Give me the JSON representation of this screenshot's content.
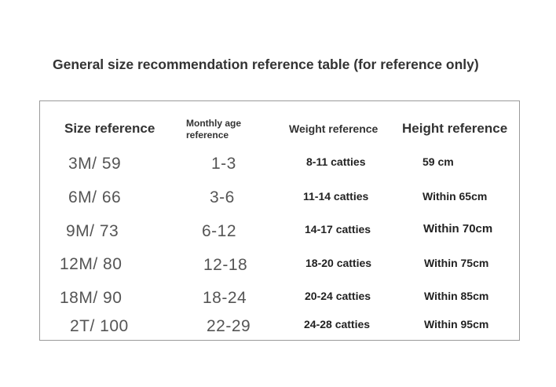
{
  "title": "General size recommendation reference table (for reference only)",
  "table": {
    "headers": {
      "size": "Size reference",
      "age_line1": "Monthly age",
      "age_line2": "reference",
      "weight": "Weight reference",
      "height": "Height reference"
    },
    "rows": [
      {
        "size": "3M/ 59",
        "age": "1-3",
        "weight": "8-11 catties",
        "height": "59 cm"
      },
      {
        "size": "6M/ 66",
        "age": "3-6",
        "weight": "11-14 catties",
        "height": "Within 65cm"
      },
      {
        "size": "9M/ 73",
        "age": "6-12",
        "weight": "14-17 catties",
        "height": "Within 70cm"
      },
      {
        "size": "12M/ 80",
        "age": "12-18",
        "weight": "18-20 catties",
        "height": "Within 75cm"
      },
      {
        "size": "18M/ 90",
        "age": "18-24",
        "weight": "20-24 catties",
        "height": "Within 85cm"
      },
      {
        "size": "2T/ 100",
        "age": "22-29",
        "weight": "24-28 catties",
        "height": "Within 95cm"
      }
    ]
  }
}
